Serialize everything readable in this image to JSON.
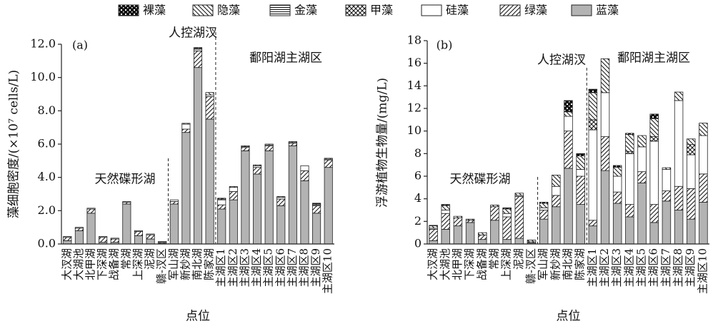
{
  "chart_data": [
    {
      "type": "bar",
      "stacked": true,
      "panel_label": "(a)",
      "ylabel": "藻细胞密度/(×10⁷ cells/L)",
      "xlabel": "点位",
      "annotations": [
        "天然碟形湖",
        "人控湖汊",
        "鄱阳湖主湖区"
      ],
      "categories": [
        "大汊湖",
        "大湖池",
        "北甲湖",
        "下深湖",
        "战备湖",
        "常湖",
        "上深湖",
        "泥湖",
        "赣-汊区",
        "军山湖",
        "新妙湖",
        "南北湖",
        "陈家湖",
        "主湖区1",
        "主湖区2",
        "主湖区3",
        "主湖区4",
        "主湖区5",
        "主湖区6",
        "主湖区7",
        "主湖区8",
        "主湖区9",
        "主湖区10"
      ],
      "ylim": [
        0,
        12
      ],
      "yticks": [
        {
          "value": 0,
          "label": "0.0"
        },
        {
          "value": 2,
          "label": "2.0"
        },
        {
          "value": 4,
          "label": "4.0"
        },
        {
          "value": 6,
          "label": "6.0"
        },
        {
          "value": 8,
          "label": "8.0"
        },
        {
          "value": 10,
          "label": "10.0"
        },
        {
          "value": 12,
          "label": "12.0"
        }
      ],
      "series": [
        {
          "name": "裸藻",
          "color": "#111111",
          "pattern": "grid",
          "values": [
            0,
            0,
            0,
            0,
            0,
            0,
            0,
            0,
            0,
            0,
            0,
            0.05,
            0,
            0.05,
            0,
            0,
            0,
            0,
            0,
            0,
            0,
            0.05,
            0
          ]
        },
        {
          "name": "隐藻",
          "color": "#111111",
          "pattern": "backslash",
          "values": [
            0,
            0,
            0,
            0,
            0,
            0,
            0,
            0,
            0,
            0,
            0.05,
            0.05,
            0.15,
            0.05,
            0.05,
            0.05,
            0.05,
            0.05,
            0.05,
            0.05,
            0,
            0.05,
            0.05
          ]
        },
        {
          "name": "金藻",
          "color": "#111111",
          "pattern": "horizontal",
          "values": [
            0,
            0,
            0,
            0,
            0,
            0,
            0,
            0,
            0,
            0,
            0,
            0,
            0,
            0,
            0,
            0,
            0,
            0,
            0,
            0,
            0,
            0,
            0
          ]
        },
        {
          "name": "甲藻",
          "color": "#111111",
          "pattern": "cross",
          "values": [
            0,
            0,
            0,
            0,
            0,
            0,
            0,
            0,
            0,
            0,
            0,
            0,
            0,
            0,
            0,
            0,
            0,
            0,
            0,
            0,
            0,
            0,
            0
          ]
        },
        {
          "name": "硅藻",
          "color": "#ffffff",
          "pattern": null,
          "values": [
            0.05,
            0.05,
            0.05,
            0.05,
            0.05,
            0.05,
            0.05,
            0.05,
            0.05,
            0.1,
            0.3,
            0.1,
            0.1,
            0.3,
            0.25,
            0.05,
            0.1,
            0.05,
            0.1,
            0.05,
            0.3,
            0.05,
            0.05
          ]
        },
        {
          "name": "绿藻",
          "color": "#111111",
          "pattern": "slash",
          "values": [
            0.2,
            0.15,
            0.25,
            0.3,
            0.2,
            0.1,
            0.25,
            0.25,
            0.05,
            0.15,
            0.2,
            1.0,
            1.35,
            0.25,
            0.5,
            0.2,
            0.4,
            0.3,
            0.4,
            0.15,
            0.6,
            0.45,
            0.45
          ]
        },
        {
          "name": "蓝藻",
          "color": "#b3b3b3",
          "pattern": null,
          "values": [
            0.2,
            0.8,
            1.85,
            0.1,
            0.1,
            2.4,
            0.5,
            0.3,
            0.05,
            2.4,
            6.7,
            10.6,
            7.5,
            2.1,
            2.65,
            5.6,
            4.2,
            5.6,
            2.3,
            5.9,
            3.8,
            1.85,
            4.6
          ]
        }
      ]
    },
    {
      "type": "bar",
      "stacked": true,
      "panel_label": "(b)",
      "ylabel": "浮游植物生物量/(mg/L)",
      "xlabel": "点位",
      "annotations": [
        "天然碟形湖",
        "人控湖汊",
        "鄱阳湖主湖区"
      ],
      "categories": [
        "大汊湖",
        "大湖池",
        "北甲湖",
        "下深湖",
        "战备湖",
        "常湖",
        "上深湖",
        "泥湖",
        "赣-汊区",
        "军山湖",
        "新妙湖",
        "南北湖",
        "陈家湖",
        "主湖区1",
        "主湖区2",
        "主湖区3",
        "主湖区4",
        "主湖区5",
        "主湖区6",
        "主湖区7",
        "主湖区8",
        "主湖区9",
        "主湖区10"
      ],
      "ylim": [
        0,
        18
      ],
      "yticks": [
        0,
        2,
        4,
        6,
        8,
        10,
        12,
        14,
        16,
        18
      ],
      "series": [
        {
          "name": "裸藻",
          "color": "#111111",
          "pattern": "grid",
          "values": [
            0.05,
            0.1,
            0,
            0,
            0,
            0,
            0.1,
            0,
            0,
            0.1,
            0,
            1.0,
            0.2,
            0.3,
            0,
            0.15,
            0.1,
            0,
            0.4,
            0,
            0,
            0,
            0
          ]
        },
        {
          "name": "隐藻",
          "color": "#111111",
          "pattern": "backslash",
          "values": [
            0.2,
            0.4,
            0.15,
            0.1,
            0.2,
            0.15,
            0.4,
            0.2,
            0.15,
            0.4,
            1.0,
            0.4,
            1.2,
            2.4,
            3.0,
            0.8,
            1.5,
            1.0,
            1.6,
            0.15,
            0.75,
            0.5,
            1.1
          ]
        },
        {
          "name": "金藻",
          "color": "#111111",
          "pattern": "horizontal",
          "values": [
            0,
            0,
            0,
            0,
            0,
            0,
            0,
            0,
            0,
            0,
            0,
            0,
            0,
            0,
            0,
            0,
            0,
            0,
            0,
            0,
            0,
            0,
            0
          ]
        },
        {
          "name": "甲藻",
          "color": "#111111",
          "pattern": "cross",
          "values": [
            0,
            0,
            0,
            0,
            0,
            0,
            0,
            0,
            0,
            0,
            0,
            0,
            0,
            0.9,
            0,
            0,
            0.2,
            0,
            0.4,
            0,
            0,
            0.9,
            0
          ]
        },
        {
          "name": "硅藻",
          "color": "#ffffff",
          "pattern": null,
          "values": [
            0.1,
            0.3,
            0,
            0,
            0,
            0,
            0.3,
            0.1,
            0,
            0.2,
            0.8,
            1.3,
            0.6,
            8.0,
            3.9,
            1.4,
            4.5,
            2.2,
            5.6,
            1.9,
            7.6,
            3.0,
            3.4
          ]
        },
        {
          "name": "绿藻",
          "color": "#111111",
          "pattern": "slash",
          "values": [
            1.0,
            1.4,
            0.7,
            0.2,
            0.4,
            1.2,
            2.0,
            3.7,
            0.1,
            0.8,
            1.0,
            3.3,
            2.5,
            0.5,
            3.0,
            1.0,
            1.1,
            1.0,
            1.6,
            0.9,
            2.1,
            2.7,
            2.5
          ]
        },
        {
          "name": "蓝藻",
          "color": "#b3b3b3",
          "pattern": null,
          "values": [
            0.3,
            1.3,
            1.6,
            1.9,
            0.4,
            2.1,
            0.4,
            0.5,
            0.1,
            2.2,
            3.3,
            6.7,
            3.5,
            1.6,
            6.5,
            3.6,
            2.4,
            5.4,
            1.9,
            3.8,
            3.0,
            2.2,
            3.7
          ]
        }
      ]
    }
  ]
}
